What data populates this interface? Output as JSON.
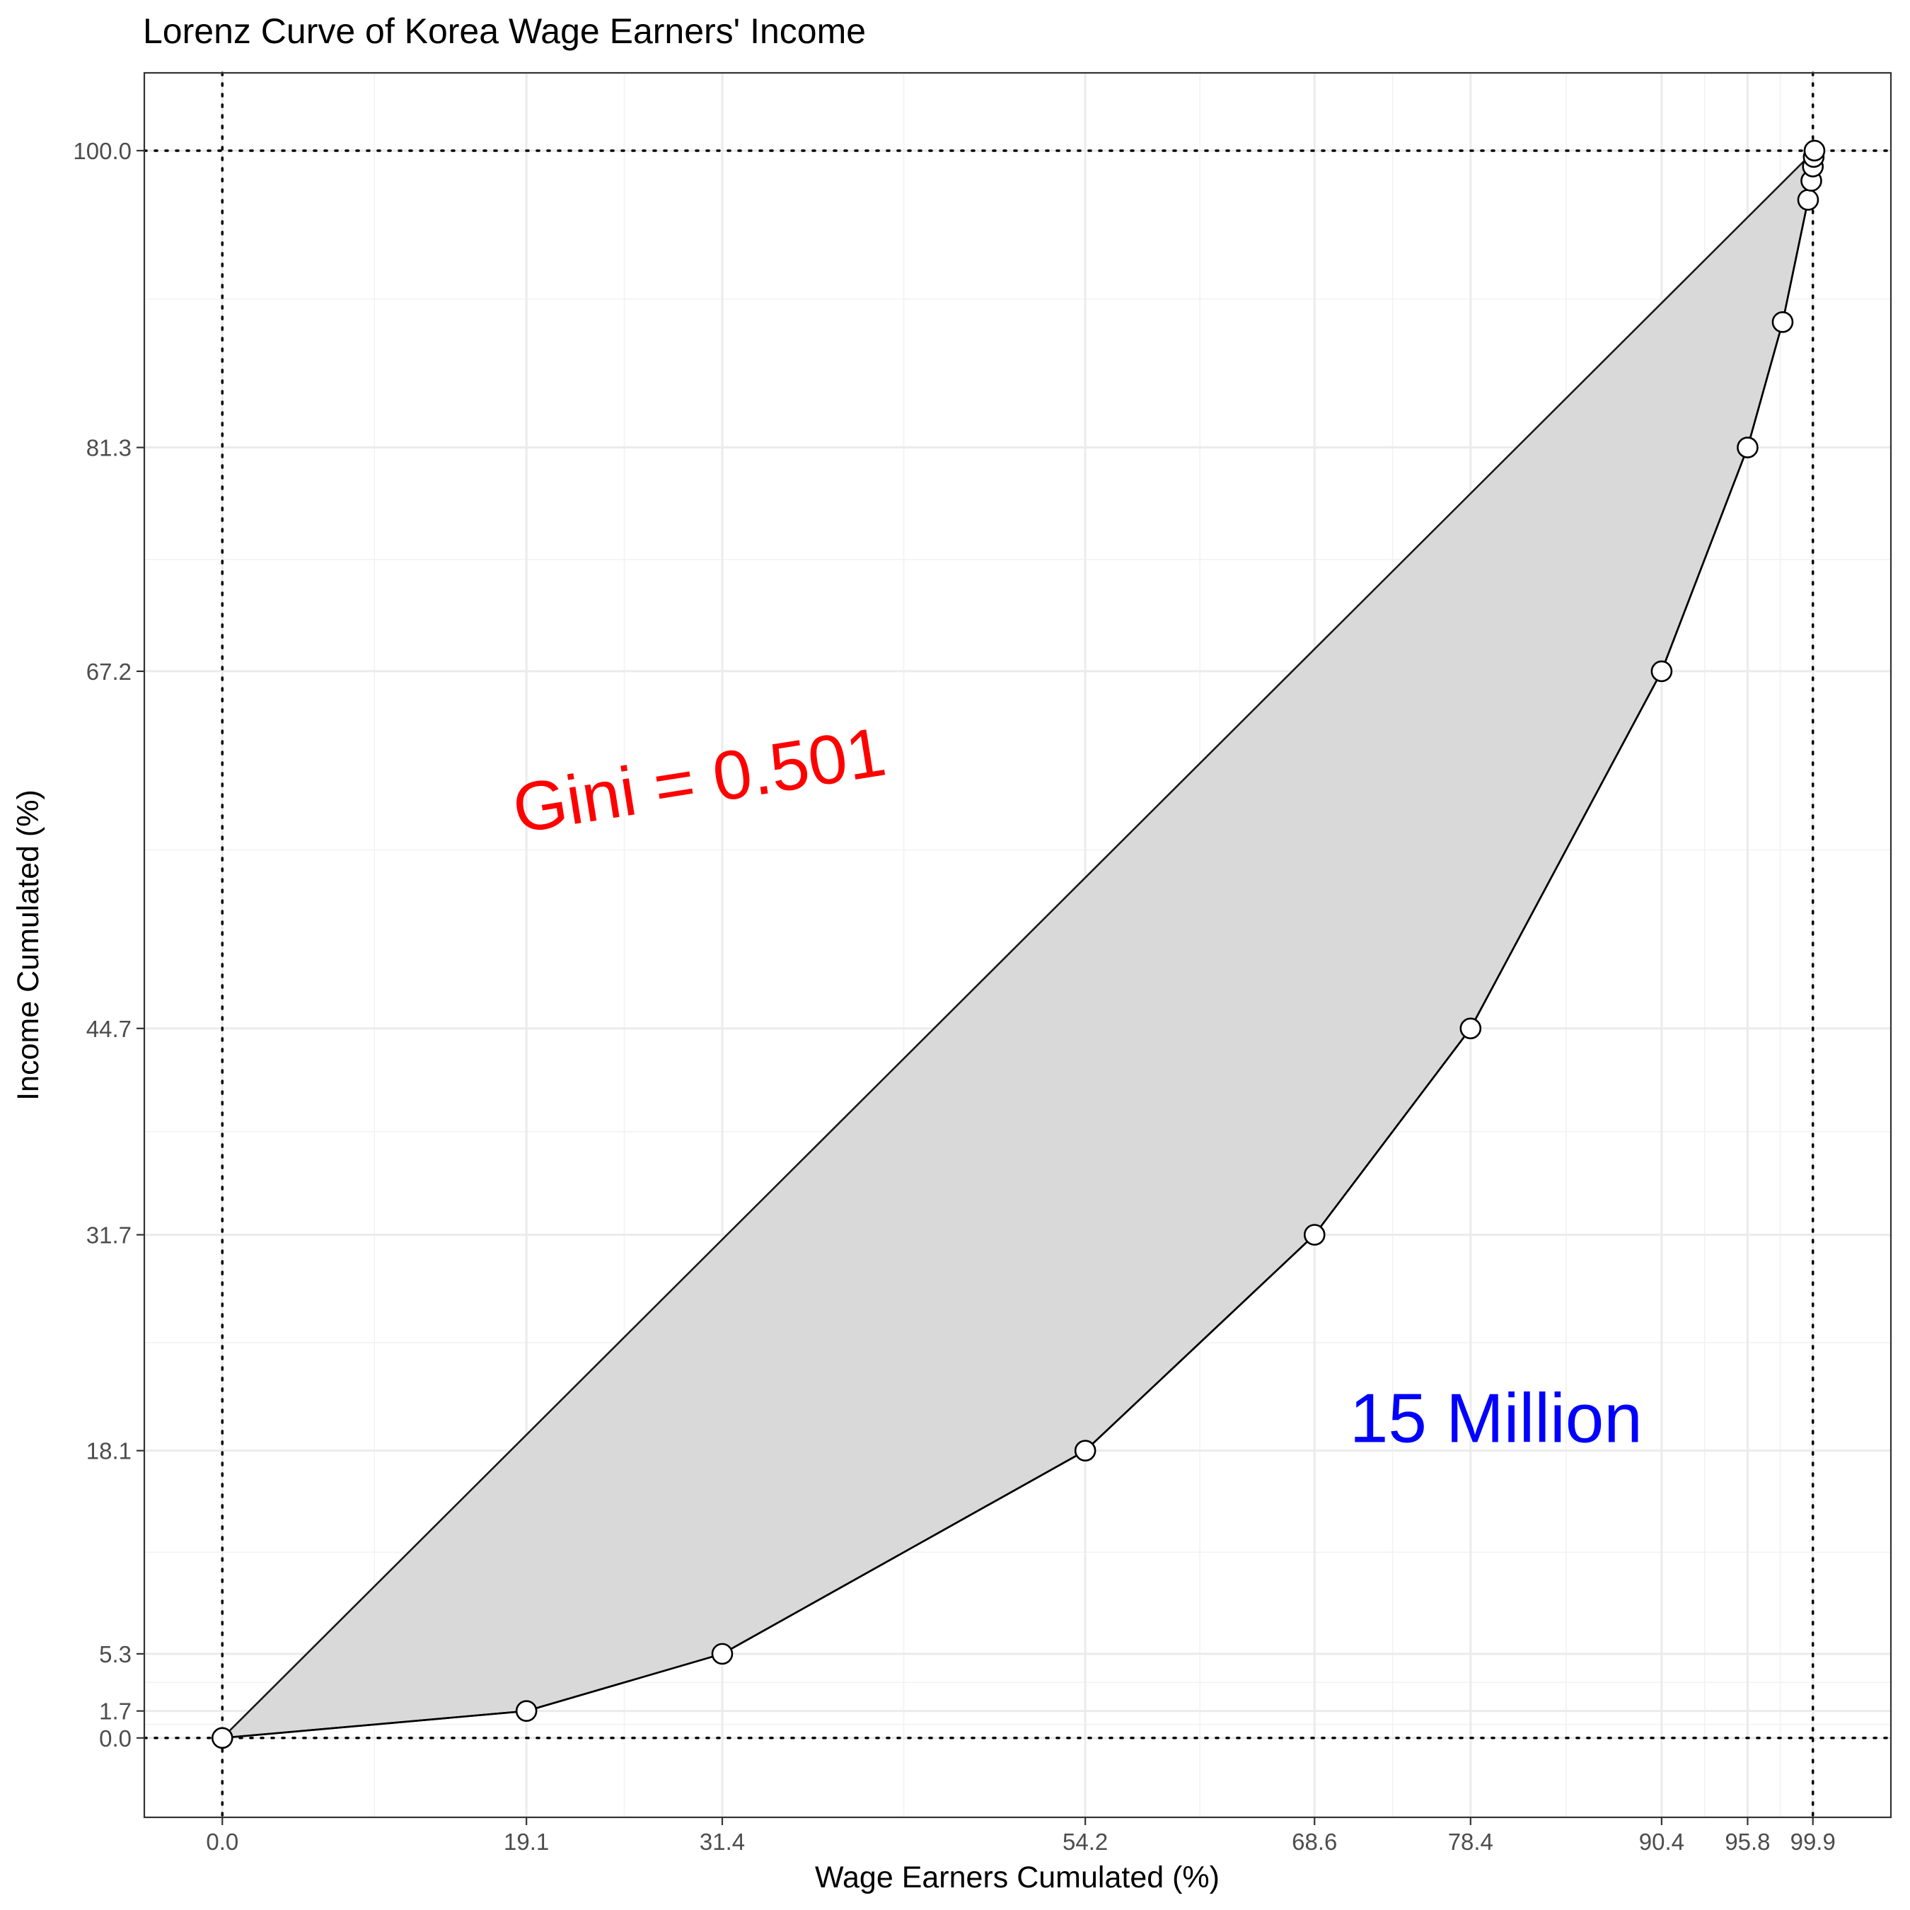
{
  "chart_data": {
    "type": "area",
    "title": "Lorenz Curve of Korea Wage Earners' Income",
    "xlabel": "Wage Earners Cumulated (%)",
    "ylabel": "Income Cumulated (%)",
    "xlim": [
      -4.9,
      104.8
    ],
    "ylim": [
      -5.0,
      104.9
    ],
    "grid": true,
    "x_ticks": [
      0.0,
      19.1,
      31.4,
      54.2,
      68.6,
      78.4,
      90.4,
      95.8,
      99.9
    ],
    "x_tick_labels": [
      "0.0",
      "19.1",
      "31.4",
      "54.2",
      "68.6",
      "78.4",
      "90.4",
      "95.8",
      "99.9"
    ],
    "y_ticks": [
      0.0,
      1.7,
      5.3,
      18.1,
      31.7,
      44.7,
      67.2,
      81.3,
      100.0
    ],
    "y_tick_labels": [
      "0.0",
      "1.7",
      "5.3",
      "18.1",
      "31.7",
      "44.7",
      "67.2",
      "81.3",
      "100.0"
    ],
    "reference_lines": {
      "vertical": [
        0.0,
        99.9
      ],
      "horizontal": [
        0.0,
        100.0
      ]
    },
    "series": [
      {
        "x": [
          0.0,
          19.1,
          31.4,
          54.2,
          68.6,
          78.4,
          90.4,
          95.8,
          98.0,
          99.6,
          99.8,
          99.9,
          99.95,
          100.0
        ],
        "y": [
          0.0,
          1.7,
          5.3,
          18.1,
          31.7,
          44.7,
          67.2,
          81.3,
          89.2,
          96.9,
          98.1,
          99.0,
          99.6,
          100.0
        ]
      }
    ],
    "equality_line": [
      [
        0,
        0
      ],
      [
        100,
        100
      ]
    ],
    "annotations": [
      {
        "text": "Gini =  0.501",
        "x": 30.0,
        "y": 60.0,
        "color": "#ff0000",
        "rotation": -9
      },
      {
        "text": "15 Million",
        "x": 80.0,
        "y": 19.8,
        "color": "#0000ff",
        "rotation": 0
      }
    ]
  }
}
